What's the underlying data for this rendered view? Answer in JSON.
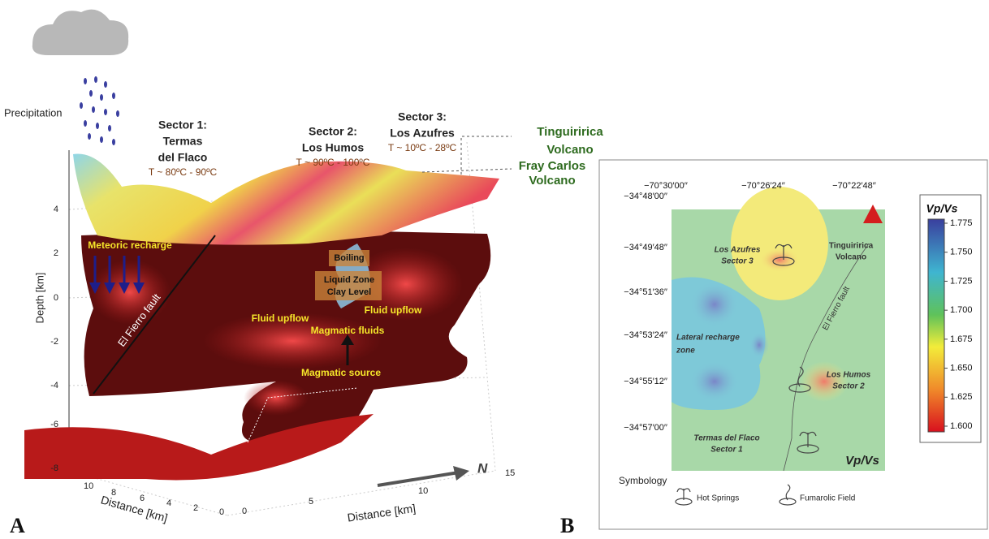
{
  "panel_a": {
    "label": "A",
    "precipitation": "Precipitation",
    "sectors": [
      {
        "lines": [
          "Sector 1:",
          "Termas",
          "del Flaco"
        ],
        "temperature": "T ~ 80ºC - 90ºC"
      },
      {
        "lines": [
          "Sector 2:",
          "Los Humos"
        ],
        "temperature": "T ~ 90ºC - 100ºC"
      },
      {
        "lines": [
          "Sector 3:",
          "Los Azufres"
        ],
        "temperature": "T ~ 10ºC - 28ºC"
      }
    ],
    "volcanoes": [
      {
        "lines": [
          "Tinguiririca",
          "Volcano"
        ]
      },
      {
        "lines": [
          "Fray Carlos",
          "Volcano"
        ]
      }
    ],
    "annotations": {
      "meteoric": "Meteoric recharge",
      "boiling": "Boiling",
      "liquid": [
        "Liquid Zone",
        "Clay Level"
      ],
      "upflow_left": "Fluid upflow",
      "upflow_right": "Fluid upflow",
      "magmatic_fluids": "Magmatic fluids",
      "magmatic_source": "Magmatic source",
      "fault": "El Fierro fault"
    },
    "axes": {
      "depth_label": "Depth [km]",
      "depth_ticks": [
        "4",
        "2",
        "0",
        "-2",
        "-4",
        "-6",
        "-8"
      ],
      "distance_left_label": "Distance [km]",
      "distance_left_ticks": [
        "10",
        "8",
        "6",
        "4",
        "2",
        "0"
      ],
      "distance_right_label": "Distance [km]",
      "distance_right_ticks": [
        "0",
        "5",
        "10",
        "15"
      ],
      "north": "N"
    }
  },
  "panel_b": {
    "label": "B",
    "longitudes": [
      "−70°30′00′′",
      "−70°26′24′′",
      "−70°22′48′′"
    ],
    "latitudes": [
      "−34°48′00′′",
      "−34°49′48′′",
      "−34°51′36′′",
      "−34°53′24′′",
      "−34°55′12′′",
      "−34°57′00′′"
    ],
    "volcano": [
      "Tinguiririca",
      "Volcano"
    ],
    "azufres": [
      "Los Azufres",
      "Sector 3"
    ],
    "recharge": [
      "Lateral recharge",
      "zone"
    ],
    "fault": "El Fierro fault",
    "humos": [
      "Los Humos",
      "Sector 2"
    ],
    "flaco": [
      "Termas del Flaco",
      "Sector 1"
    ],
    "map_label": "Vp/Vs",
    "colorbar": {
      "title": "Vp/Vs",
      "ticks": [
        "1.775",
        "1.750",
        "1.725",
        "1.700",
        "1.675",
        "1.650",
        "1.625",
        "1.600"
      ]
    },
    "symbology": {
      "title": "Symbology",
      "hot_springs": "Hot Springs",
      "fumarolic": "Fumarolic Field"
    }
  }
}
